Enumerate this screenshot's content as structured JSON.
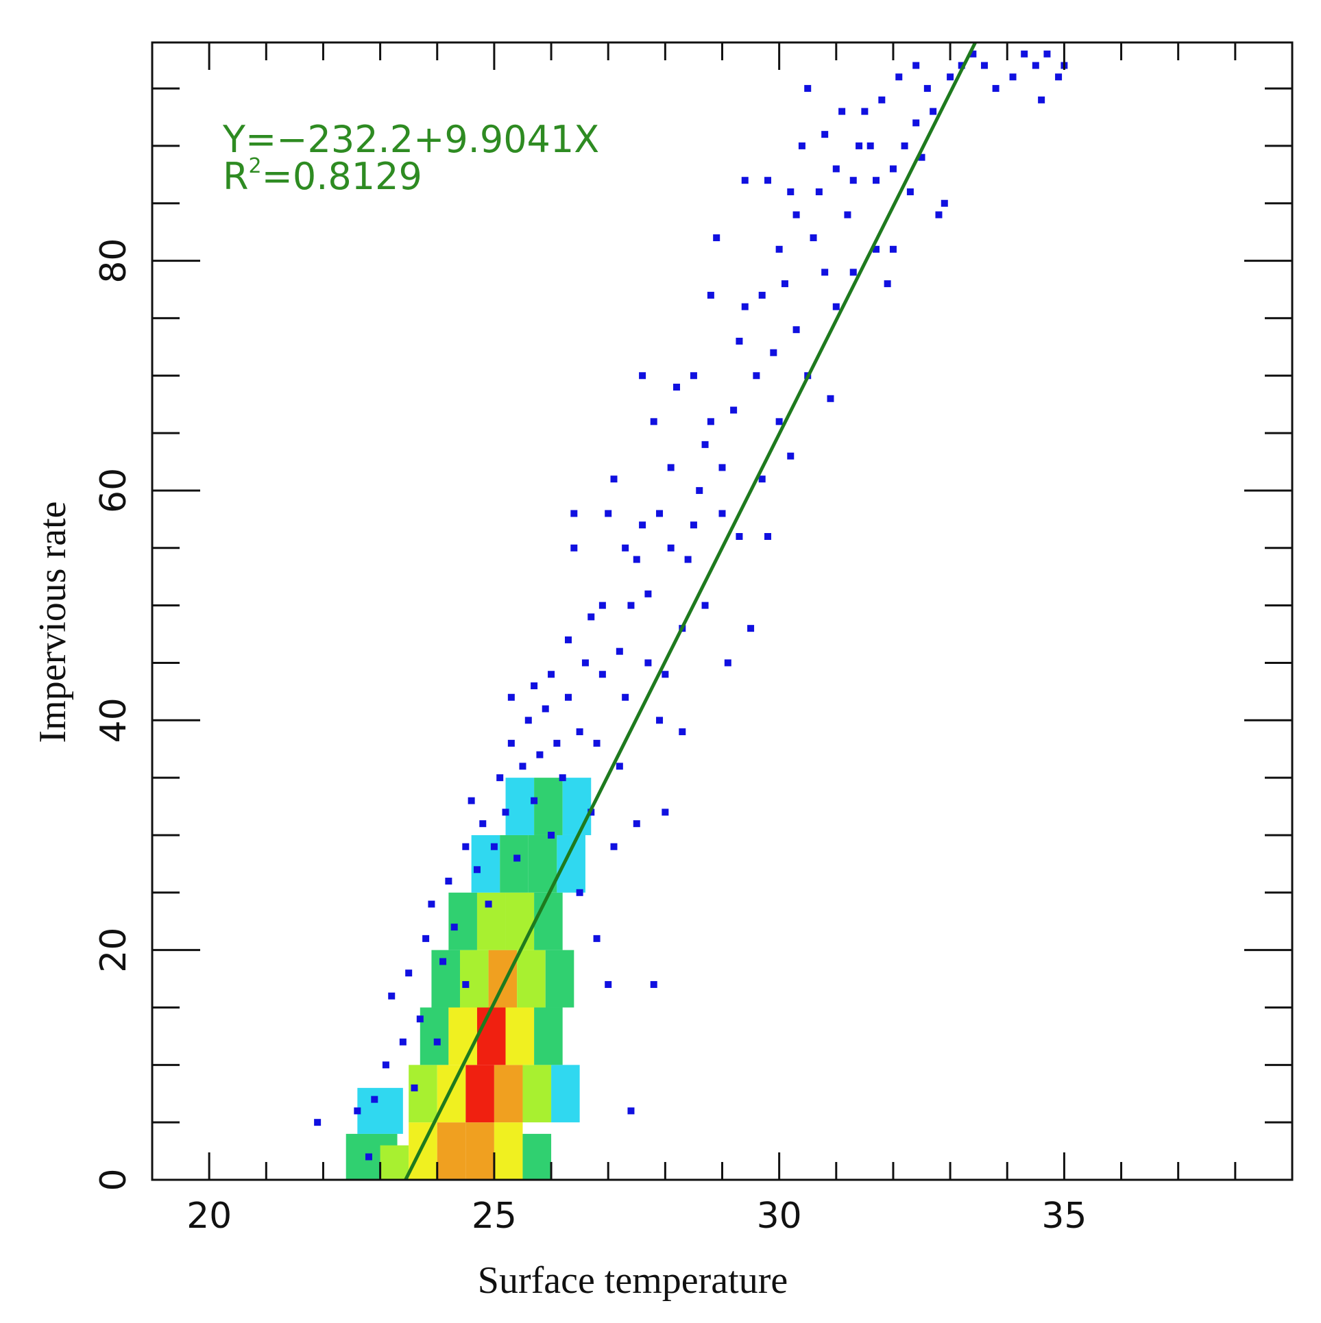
{
  "chart_data": {
    "type": "scatter",
    "subtype": "density-scatter with linear regression fit",
    "xlabel": "Surface temperature",
    "ylabel": "Impervious rate",
    "xlim": [
      19,
      39
    ],
    "ylim": [
      0,
      99
    ],
    "x_ticks": [
      20,
      25,
      30,
      35
    ],
    "y_ticks": [
      0,
      20,
      40,
      60,
      80
    ],
    "grid": false,
    "annotation": {
      "equation": "Y=−232.2+9.9041X",
      "r2_prefix": "R",
      "r2_sup": "2",
      "r2_value": "=0.8129",
      "color": "#2e8b22"
    },
    "regression": {
      "intercept": -232.2,
      "slope": 9.9041,
      "r2": 0.8129,
      "color": "#1e7a1e"
    },
    "density_color_scale": [
      "#1010e0",
      "#30d8f0",
      "#30d070",
      "#a8f030",
      "#f0f020",
      "#f0a020",
      "#f02010"
    ],
    "density_bins": [
      {
        "x_range": [
          22.4,
          23.3
        ],
        "y_range": [
          0,
          4
        ],
        "level": 2
      },
      {
        "x_range": [
          22.6,
          23.4
        ],
        "y_range": [
          4,
          8
        ],
        "level": 1
      },
      {
        "x_range": [
          23.0,
          23.5
        ],
        "y_range": [
          0,
          3
        ],
        "level": 3
      },
      {
        "x_range": [
          23.5,
          24.0
        ],
        "y_range": [
          0,
          5
        ],
        "level": 4
      },
      {
        "x_range": [
          24.0,
          24.5
        ],
        "y_range": [
          0,
          5
        ],
        "level": 5
      },
      {
        "x_range": [
          24.5,
          25.0
        ],
        "y_range": [
          0,
          5
        ],
        "level": 5
      },
      {
        "x_range": [
          25.0,
          25.5
        ],
        "y_range": [
          0,
          5
        ],
        "level": 4
      },
      {
        "x_range": [
          25.5,
          26.0
        ],
        "y_range": [
          0,
          4
        ],
        "level": 2
      },
      {
        "x_range": [
          23.5,
          24.0
        ],
        "y_range": [
          5,
          10
        ],
        "level": 3
      },
      {
        "x_range": [
          24.0,
          24.5
        ],
        "y_range": [
          5,
          10
        ],
        "level": 4
      },
      {
        "x_range": [
          24.5,
          25.0
        ],
        "y_range": [
          5,
          10
        ],
        "level": 6
      },
      {
        "x_range": [
          25.0,
          25.5
        ],
        "y_range": [
          5,
          10
        ],
        "level": 5
      },
      {
        "x_range": [
          25.5,
          26.0
        ],
        "y_range": [
          5,
          10
        ],
        "level": 3
      },
      {
        "x_range": [
          26.0,
          26.5
        ],
        "y_range": [
          5,
          10
        ],
        "level": 1
      },
      {
        "x_range": [
          23.7,
          24.2
        ],
        "y_range": [
          10,
          15
        ],
        "level": 2
      },
      {
        "x_range": [
          24.2,
          24.7
        ],
        "y_range": [
          10,
          15
        ],
        "level": 4
      },
      {
        "x_range": [
          24.7,
          25.2
        ],
        "y_range": [
          10,
          15
        ],
        "level": 6
      },
      {
        "x_range": [
          25.2,
          25.7
        ],
        "y_range": [
          10,
          15
        ],
        "level": 4
      },
      {
        "x_range": [
          25.7,
          26.2
        ],
        "y_range": [
          10,
          15
        ],
        "level": 2
      },
      {
        "x_range": [
          23.9,
          24.4
        ],
        "y_range": [
          15,
          20
        ],
        "level": 2
      },
      {
        "x_range": [
          24.4,
          24.9
        ],
        "y_range": [
          15,
          20
        ],
        "level": 3
      },
      {
        "x_range": [
          24.9,
          25.4
        ],
        "y_range": [
          15,
          20
        ],
        "level": 5
      },
      {
        "x_range": [
          25.4,
          25.9
        ],
        "y_range": [
          15,
          20
        ],
        "level": 3
      },
      {
        "x_range": [
          25.9,
          26.4
        ],
        "y_range": [
          15,
          20
        ],
        "level": 2
      },
      {
        "x_range": [
          24.2,
          24.7
        ],
        "y_range": [
          20,
          25
        ],
        "level": 2
      },
      {
        "x_range": [
          24.7,
          25.2
        ],
        "y_range": [
          20,
          25
        ],
        "level": 3
      },
      {
        "x_range": [
          25.2,
          25.7
        ],
        "y_range": [
          20,
          25
        ],
        "level": 3
      },
      {
        "x_range": [
          25.7,
          26.2
        ],
        "y_range": [
          20,
          25
        ],
        "level": 2
      },
      {
        "x_range": [
          24.6,
          25.1
        ],
        "y_range": [
          25,
          30
        ],
        "level": 1
      },
      {
        "x_range": [
          25.1,
          25.6
        ],
        "y_range": [
          25,
          30
        ],
        "level": 2
      },
      {
        "x_range": [
          25.6,
          26.1
        ],
        "y_range": [
          25,
          30
        ],
        "level": 2
      },
      {
        "x_range": [
          26.1,
          26.6
        ],
        "y_range": [
          25,
          30
        ],
        "level": 1
      },
      {
        "x_range": [
          25.2,
          25.7
        ],
        "y_range": [
          30,
          35
        ],
        "level": 1
      },
      {
        "x_range": [
          25.7,
          26.2
        ],
        "y_range": [
          30,
          35
        ],
        "level": 2
      },
      {
        "x_range": [
          26.2,
          26.7
        ],
        "y_range": [
          30,
          35
        ],
        "level": 1
      }
    ],
    "points": [
      {
        "x": 21.9,
        "y": 5
      },
      {
        "x": 22.6,
        "y": 6
      },
      {
        "x": 22.8,
        "y": 2
      },
      {
        "x": 22.9,
        "y": 7
      },
      {
        "x": 23.1,
        "y": 10
      },
      {
        "x": 23.2,
        "y": 16
      },
      {
        "x": 23.4,
        "y": 12
      },
      {
        "x": 23.5,
        "y": 18
      },
      {
        "x": 23.6,
        "y": 8
      },
      {
        "x": 23.7,
        "y": 14
      },
      {
        "x": 23.8,
        "y": 21
      },
      {
        "x": 23.9,
        "y": 24
      },
      {
        "x": 24.0,
        "y": 12
      },
      {
        "x": 24.1,
        "y": 19
      },
      {
        "x": 24.2,
        "y": 26
      },
      {
        "x": 24.3,
        "y": 22
      },
      {
        "x": 24.5,
        "y": 29
      },
      {
        "x": 24.5,
        "y": 17
      },
      {
        "x": 24.6,
        "y": 33
      },
      {
        "x": 24.7,
        "y": 27
      },
      {
        "x": 24.8,
        "y": 31
      },
      {
        "x": 24.9,
        "y": 24
      },
      {
        "x": 25.0,
        "y": 29
      },
      {
        "x": 25.1,
        "y": 35
      },
      {
        "x": 25.2,
        "y": 32
      },
      {
        "x": 25.3,
        "y": 38
      },
      {
        "x": 25.3,
        "y": 42
      },
      {
        "x": 25.4,
        "y": 28
      },
      {
        "x": 25.5,
        "y": 36
      },
      {
        "x": 25.6,
        "y": 40
      },
      {
        "x": 25.7,
        "y": 43
      },
      {
        "x": 25.7,
        "y": 33
      },
      {
        "x": 25.8,
        "y": 37
      },
      {
        "x": 25.9,
        "y": 41
      },
      {
        "x": 26.0,
        "y": 44
      },
      {
        "x": 26.0,
        "y": 30
      },
      {
        "x": 26.1,
        "y": 38
      },
      {
        "x": 26.2,
        "y": 35
      },
      {
        "x": 26.3,
        "y": 42
      },
      {
        "x": 26.3,
        "y": 47
      },
      {
        "x": 26.4,
        "y": 55
      },
      {
        "x": 26.4,
        "y": 58
      },
      {
        "x": 26.5,
        "y": 39
      },
      {
        "x": 26.5,
        "y": 25
      },
      {
        "x": 26.6,
        "y": 45
      },
      {
        "x": 26.7,
        "y": 49
      },
      {
        "x": 26.7,
        "y": 32
      },
      {
        "x": 26.8,
        "y": 21
      },
      {
        "x": 26.8,
        "y": 38
      },
      {
        "x": 26.9,
        "y": 44
      },
      {
        "x": 26.9,
        "y": 50
      },
      {
        "x": 27.0,
        "y": 58
      },
      {
        "x": 27.0,
        "y": 17
      },
      {
        "x": 27.1,
        "y": 61
      },
      {
        "x": 27.1,
        "y": 29
      },
      {
        "x": 27.2,
        "y": 36
      },
      {
        "x": 27.2,
        "y": 46
      },
      {
        "x": 27.3,
        "y": 55
      },
      {
        "x": 27.3,
        "y": 42
      },
      {
        "x": 27.4,
        "y": 50
      },
      {
        "x": 27.4,
        "y": 6
      },
      {
        "x": 27.5,
        "y": 31
      },
      {
        "x": 27.5,
        "y": 54
      },
      {
        "x": 27.6,
        "y": 70
      },
      {
        "x": 27.6,
        "y": 57
      },
      {
        "x": 27.7,
        "y": 45
      },
      {
        "x": 27.7,
        "y": 51
      },
      {
        "x": 27.8,
        "y": 66
      },
      {
        "x": 27.8,
        "y": 17
      },
      {
        "x": 27.9,
        "y": 40
      },
      {
        "x": 27.9,
        "y": 58
      },
      {
        "x": 28.0,
        "y": 32
      },
      {
        "x": 28.0,
        "y": 44
      },
      {
        "x": 28.1,
        "y": 62
      },
      {
        "x": 28.1,
        "y": 55
      },
      {
        "x": 28.2,
        "y": 69
      },
      {
        "x": 28.3,
        "y": 48
      },
      {
        "x": 28.3,
        "y": 39
      },
      {
        "x": 28.4,
        "y": 54
      },
      {
        "x": 28.5,
        "y": 70
      },
      {
        "x": 28.5,
        "y": 57
      },
      {
        "x": 28.6,
        "y": 60
      },
      {
        "x": 28.7,
        "y": 64
      },
      {
        "x": 28.7,
        "y": 50
      },
      {
        "x": 28.8,
        "y": 77
      },
      {
        "x": 28.8,
        "y": 66
      },
      {
        "x": 28.9,
        "y": 82
      },
      {
        "x": 29.0,
        "y": 58
      },
      {
        "x": 29.0,
        "y": 62
      },
      {
        "x": 29.1,
        "y": 45
      },
      {
        "x": 29.2,
        "y": 67
      },
      {
        "x": 29.3,
        "y": 56
      },
      {
        "x": 29.3,
        "y": 73
      },
      {
        "x": 29.4,
        "y": 76
      },
      {
        "x": 29.4,
        "y": 87
      },
      {
        "x": 29.5,
        "y": 48
      },
      {
        "x": 29.6,
        "y": 70
      },
      {
        "x": 29.7,
        "y": 61
      },
      {
        "x": 29.7,
        "y": 77
      },
      {
        "x": 29.8,
        "y": 56
      },
      {
        "x": 29.8,
        "y": 87
      },
      {
        "x": 29.9,
        "y": 72
      },
      {
        "x": 30.0,
        "y": 81
      },
      {
        "x": 30.0,
        "y": 66
      },
      {
        "x": 30.1,
        "y": 78
      },
      {
        "x": 30.2,
        "y": 86
      },
      {
        "x": 30.2,
        "y": 63
      },
      {
        "x": 30.3,
        "y": 74
      },
      {
        "x": 30.3,
        "y": 84
      },
      {
        "x": 30.4,
        "y": 90
      },
      {
        "x": 30.5,
        "y": 95
      },
      {
        "x": 30.5,
        "y": 70
      },
      {
        "x": 30.6,
        "y": 82
      },
      {
        "x": 30.7,
        "y": 86
      },
      {
        "x": 30.8,
        "y": 79
      },
      {
        "x": 30.8,
        "y": 91
      },
      {
        "x": 30.9,
        "y": 68
      },
      {
        "x": 31.0,
        "y": 88
      },
      {
        "x": 31.0,
        "y": 76
      },
      {
        "x": 31.1,
        "y": 93
      },
      {
        "x": 31.2,
        "y": 84
      },
      {
        "x": 31.3,
        "y": 87
      },
      {
        "x": 31.3,
        "y": 79
      },
      {
        "x": 31.4,
        "y": 90
      },
      {
        "x": 31.5,
        "y": 93
      },
      {
        "x": 31.6,
        "y": 90
      },
      {
        "x": 31.7,
        "y": 87
      },
      {
        "x": 31.7,
        "y": 81
      },
      {
        "x": 31.8,
        "y": 94
      },
      {
        "x": 31.9,
        "y": 78
      },
      {
        "x": 32.0,
        "y": 81
      },
      {
        "x": 32.0,
        "y": 88
      },
      {
        "x": 32.1,
        "y": 96
      },
      {
        "x": 32.2,
        "y": 90
      },
      {
        "x": 32.3,
        "y": 86
      },
      {
        "x": 32.4,
        "y": 92
      },
      {
        "x": 32.4,
        "y": 97
      },
      {
        "x": 32.5,
        "y": 89
      },
      {
        "x": 32.6,
        "y": 95
      },
      {
        "x": 32.7,
        "y": 93
      },
      {
        "x": 32.8,
        "y": 84
      },
      {
        "x": 32.9,
        "y": 85
      },
      {
        "x": 33.0,
        "y": 96
      },
      {
        "x": 33.2,
        "y": 97
      },
      {
        "x": 33.4,
        "y": 98
      },
      {
        "x": 33.6,
        "y": 97
      },
      {
        "x": 33.8,
        "y": 95
      },
      {
        "x": 34.1,
        "y": 96
      },
      {
        "x": 34.3,
        "y": 98
      },
      {
        "x": 34.5,
        "y": 97
      },
      {
        "x": 34.6,
        "y": 94
      },
      {
        "x": 34.7,
        "y": 98
      },
      {
        "x": 34.9,
        "y": 96
      },
      {
        "x": 35.0,
        "y": 97
      }
    ]
  }
}
